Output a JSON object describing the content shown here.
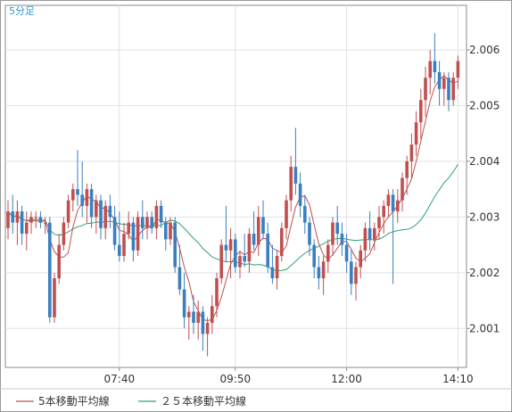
{
  "chart_data": {
    "type": "candlestick",
    "period_label": "5分足",
    "x_tick_labels": [
      "07:40",
      "09:50",
      "12:00",
      "14:10"
    ],
    "y_ticks": [
      2.001,
      2.002,
      2.003,
      2.004,
      2.005,
      2.006
    ],
    "ylim": [
      2.0003,
      2.0068
    ],
    "grid": true,
    "up_color": "#c05050",
    "down_color": "#3a7fc0",
    "legend": [
      {
        "label": "5本移動平均線",
        "color": "#c05050"
      },
      {
        "label": "２５本移動平均線",
        "color": "#30a070"
      }
    ],
    "series": [
      {
        "name": "ohlc",
        "ohlc": [
          [
            2.0028,
            2.0033,
            2.0026,
            2.0031
          ],
          [
            2.0031,
            2.0034,
            2.0027,
            2.0029
          ],
          [
            2.0029,
            2.0033,
            2.0025,
            2.0031
          ],
          [
            2.0031,
            2.0032,
            2.0025,
            2.0027
          ],
          [
            2.0027,
            2.0031,
            2.0024,
            2.0029
          ],
          [
            2.0029,
            2.0031,
            2.0027,
            2.003
          ],
          [
            2.003,
            2.0031,
            2.0028,
            2.003
          ],
          [
            2.003,
            2.0031,
            2.0028,
            2.0029
          ],
          [
            2.0029,
            2.003,
            2.0027,
            2.0029
          ],
          [
            2.0029,
            2.003,
            2.0011,
            2.0012
          ],
          [
            2.0012,
            2.002,
            2.0011,
            2.0019
          ],
          [
            2.0019,
            2.0027,
            2.0018,
            2.0025
          ],
          [
            2.0025,
            2.003,
            2.0024,
            2.0029
          ],
          [
            2.0029,
            2.0034,
            2.0028,
            2.0033
          ],
          [
            2.0033,
            2.0036,
            2.0031,
            2.0035
          ],
          [
            2.0035,
            2.0042,
            2.0032,
            2.0034
          ],
          [
            2.0034,
            2.004,
            2.003,
            2.0032
          ],
          [
            2.0032,
            2.0036,
            2.0029,
            2.0035
          ],
          [
            2.0035,
            2.0036,
            2.0028,
            2.003
          ],
          [
            2.003,
            2.0034,
            2.0027,
            2.0033
          ],
          [
            2.0033,
            2.0034,
            2.0026,
            2.0028
          ],
          [
            2.0028,
            2.0033,
            2.0026,
            2.0032
          ],
          [
            2.0032,
            2.0034,
            2.0028,
            2.003
          ],
          [
            2.003,
            2.0032,
            2.0024,
            2.0025
          ],
          [
            2.0025,
            2.0031,
            2.0022,
            2.0023
          ],
          [
            2.0023,
            2.0029,
            2.0022,
            2.0027
          ],
          [
            2.0027,
            2.0031,
            2.0026,
            2.0029
          ],
          [
            2.0029,
            2.003,
            2.0022,
            2.0024
          ],
          [
            2.0024,
            2.0031,
            2.0023,
            2.003
          ],
          [
            2.003,
            2.0033,
            2.0026,
            2.0028
          ],
          [
            2.0028,
            2.0031,
            2.0026,
            2.003
          ],
          [
            2.003,
            2.0031,
            2.0027,
            2.0028
          ],
          [
            2.0028,
            2.0033,
            2.0026,
            2.0032
          ],
          [
            2.0032,
            2.0033,
            2.0028,
            2.0029
          ],
          [
            2.0029,
            2.003,
            2.0024,
            2.0026
          ],
          [
            2.0026,
            2.003,
            2.0025,
            2.0029
          ],
          [
            2.0029,
            2.003,
            2.002,
            2.0021
          ],
          [
            2.0021,
            2.0025,
            2.0016,
            2.0017
          ],
          [
            2.0017,
            2.002,
            2.001,
            2.0012
          ],
          [
            2.0012,
            2.0014,
            2.0008,
            2.0013
          ],
          [
            2.0013,
            2.0016,
            2.0009,
            2.0011
          ],
          [
            2.0011,
            2.0015,
            2.0008,
            2.0013
          ],
          [
            2.0013,
            2.0014,
            2.0006,
            2.0009
          ],
          [
            2.0009,
            2.0012,
            2.0005,
            2.0011
          ],
          [
            2.0011,
            2.0016,
            2.0009,
            2.0014
          ],
          [
            2.0014,
            2.002,
            2.0012,
            2.0019
          ],
          [
            2.0019,
            2.0026,
            2.0018,
            2.0025
          ],
          [
            2.0025,
            2.0032,
            2.0022,
            2.0024
          ],
          [
            2.0024,
            2.0028,
            2.0019,
            2.0026
          ],
          [
            2.0026,
            2.0027,
            2.002,
            2.0021
          ],
          [
            2.0021,
            2.0024,
            2.0019,
            2.0023
          ],
          [
            2.0023,
            2.0027,
            2.0021,
            2.0022
          ],
          [
            2.0022,
            2.0028,
            2.002,
            2.0027
          ],
          [
            2.0027,
            2.0031,
            2.0024,
            2.0025
          ],
          [
            2.0025,
            2.0032,
            2.0023,
            2.003
          ],
          [
            2.003,
            2.0033,
            2.0026,
            2.0027
          ],
          [
            2.0027,
            2.0029,
            2.002,
            2.0021
          ],
          [
            2.0021,
            2.0025,
            2.0018,
            2.0019
          ],
          [
            2.0019,
            2.0024,
            2.0017,
            2.0023
          ],
          [
            2.0023,
            2.0029,
            2.0022,
            2.0028
          ],
          [
            2.0028,
            2.0034,
            2.0026,
            2.0033
          ],
          [
            2.0033,
            2.0041,
            2.0031,
            2.0039
          ],
          [
            2.0039,
            2.0046,
            2.0034,
            2.0036
          ],
          [
            2.0036,
            2.0038,
            2.003,
            2.0032
          ],
          [
            2.0032,
            2.0034,
            2.0027,
            2.0029
          ],
          [
            2.0029,
            2.003,
            2.0023,
            2.0025
          ],
          [
            2.0025,
            2.0026,
            2.0019,
            2.0021
          ],
          [
            2.0021,
            2.0023,
            2.0017,
            2.0019
          ],
          [
            2.0019,
            2.0023,
            2.0016,
            2.0022
          ],
          [
            2.0022,
            2.0026,
            2.002,
            2.0025
          ],
          [
            2.0025,
            2.003,
            2.0023,
            2.0029
          ],
          [
            2.0029,
            2.0032,
            2.0025,
            2.0027
          ],
          [
            2.0027,
            2.0029,
            2.0023,
            2.0025
          ],
          [
            2.0025,
            2.0027,
            2.002,
            2.0022
          ],
          [
            2.0022,
            2.0024,
            2.0016,
            2.0018
          ],
          [
            2.0018,
            2.0022,
            2.0015,
            2.0021
          ],
          [
            2.0021,
            2.0025,
            2.0019,
            2.0024
          ],
          [
            2.0024,
            2.0029,
            2.0022,
            2.0028
          ],
          [
            2.0028,
            2.0031,
            2.0024,
            2.0026
          ],
          [
            2.0026,
            2.0029,
            2.0024,
            2.0028
          ],
          [
            2.0028,
            2.0032,
            2.0026,
            2.003
          ],
          [
            2.003,
            2.0033,
            2.0027,
            2.0032
          ],
          [
            2.0032,
            2.0035,
            2.003,
            2.0034
          ],
          [
            2.0034,
            2.0035,
            2.0018,
            2.0031
          ],
          [
            2.0031,
            2.0035,
            2.0029,
            2.0033
          ],
          [
            2.0033,
            2.0038,
            2.0031,
            2.0037
          ],
          [
            2.0037,
            2.0041,
            2.0034,
            2.004
          ],
          [
            2.004,
            2.0045,
            2.0037,
            2.0043
          ],
          [
            2.0043,
            2.0049,
            2.0041,
            2.0047
          ],
          [
            2.0047,
            2.0053,
            2.0044,
            2.0051
          ],
          [
            2.0051,
            2.0057,
            2.0048,
            2.0055
          ],
          [
            2.0055,
            2.006,
            2.0052,
            2.0058
          ],
          [
            2.0058,
            2.0063,
            2.0054,
            2.0056
          ],
          [
            2.0056,
            2.0058,
            2.005,
            2.0053
          ],
          [
            2.0053,
            2.0056,
            2.005,
            2.0055
          ],
          [
            2.0055,
            2.0056,
            2.0049,
            2.0051
          ],
          [
            2.0051,
            2.0056,
            2.005,
            2.0055
          ],
          [
            2.0055,
            2.0059,
            2.0053,
            2.0058
          ]
        ]
      }
    ]
  }
}
